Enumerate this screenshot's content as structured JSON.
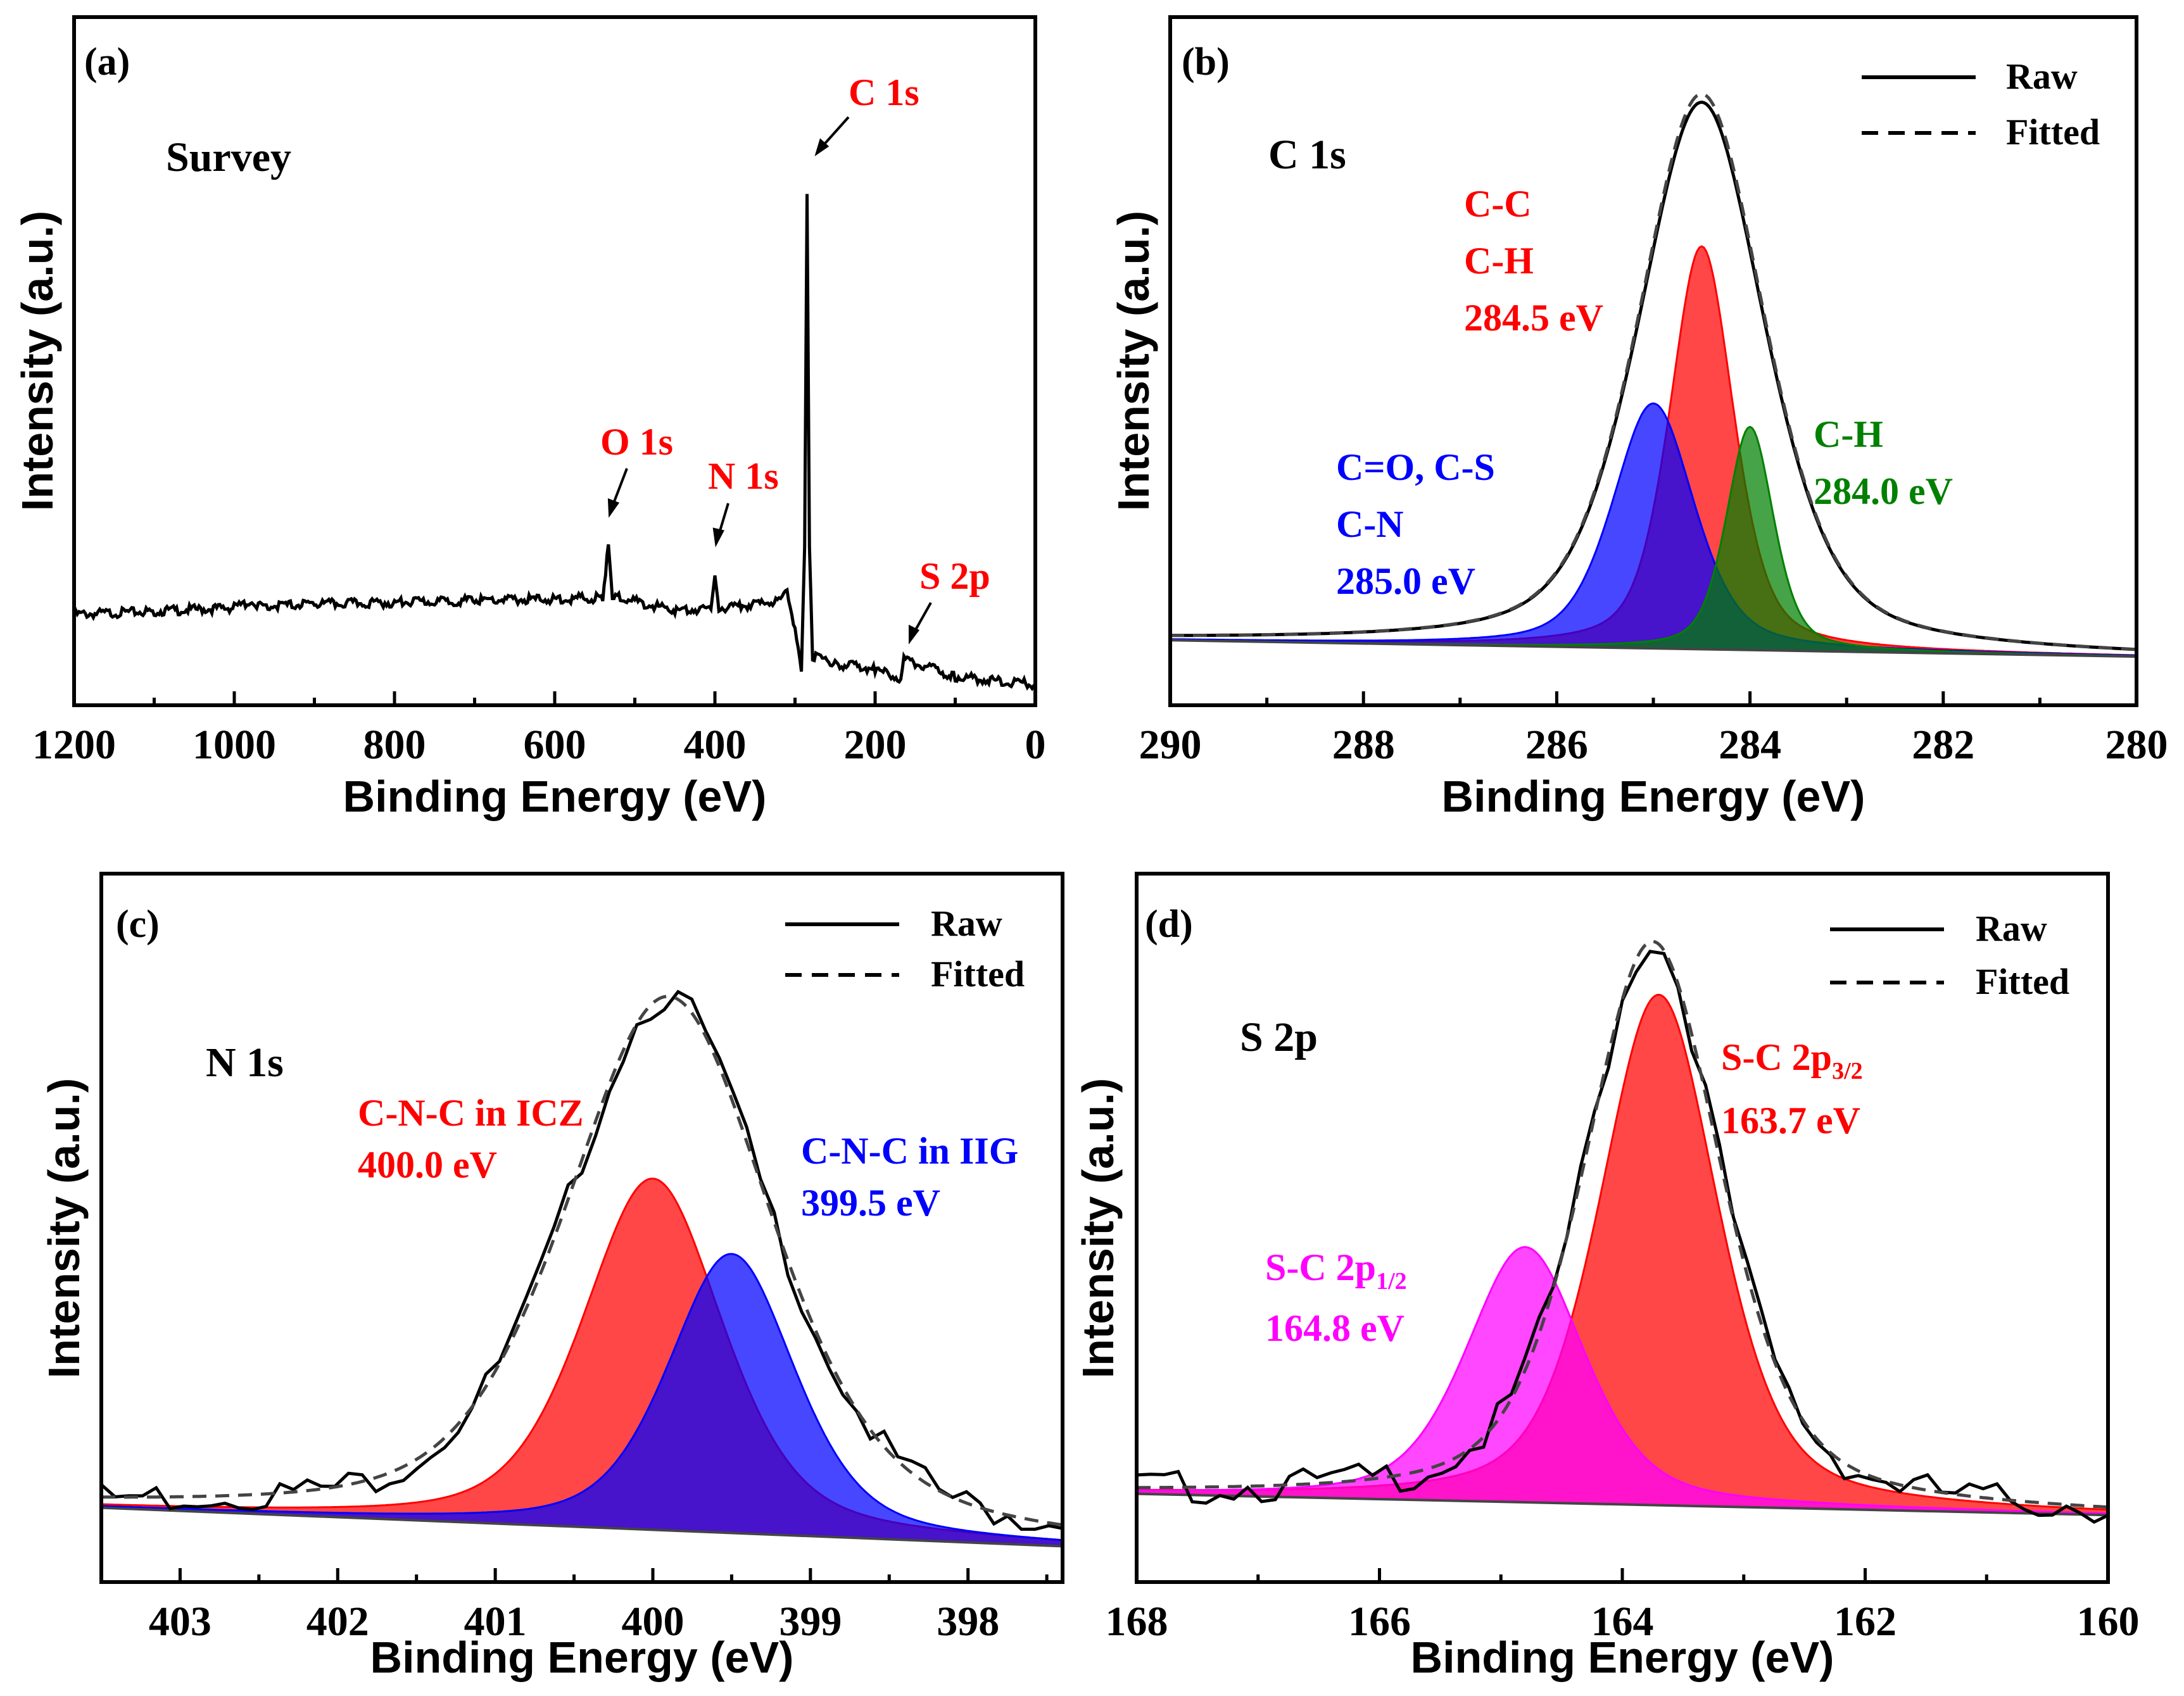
{
  "chart_data": [
    {
      "panel": "(a)",
      "type": "line",
      "title": "Survey",
      "xlabel": "Binding Energy (eV)",
      "ylabel": "Intensity (a.u.)",
      "xlim": [
        1200,
        0
      ],
      "ylim": [
        0,
        100
      ],
      "xticks": [
        1200,
        1000,
        800,
        600,
        400,
        200,
        0
      ],
      "tick_labels": [
        "1200",
        "1000",
        "800",
        "600",
        "400",
        "200",
        "0"
      ],
      "series": [
        {
          "name": "Survey",
          "color": "#000000",
          "x": [
            1200,
            1100,
            1000,
            980,
            970,
            900,
            800,
            700,
            600,
            540,
            533,
            528,
            520,
            450,
            405,
            400,
            395,
            320,
            310,
            300,
            292,
            288,
            285,
            282,
            278,
            250,
            200,
            168,
            164,
            100,
            0
          ],
          "y": [
            17,
            17.6,
            18.3,
            19.5,
            18.6,
            19.0,
            19.3,
            19.7,
            20.0,
            20.2,
            30.5,
            20.4,
            20.2,
            17.8,
            18.0,
            24.5,
            18.2,
            19.5,
            22,
            14,
            6,
            30,
            98,
            30,
            9,
            7.5,
            6.5,
            4.5,
            8.5,
            5.0,
            3.5
          ]
        }
      ],
      "annotations": [
        {
          "text": "C 1s",
          "x": 285,
          "color": "#ff0000"
        },
        {
          "text": "O 1s",
          "x": 532,
          "color": "#ff0000"
        },
        {
          "text": "N 1s",
          "x": 400,
          "color": "#ff0000"
        },
        {
          "text": "S 2p",
          "x": 164,
          "color": "#ff0000"
        }
      ]
    },
    {
      "panel": "(b)",
      "type": "line",
      "title": "C 1s",
      "xlabel": "Binding Energy (eV)",
      "ylabel": "Intensity (a.u.)",
      "xlim": [
        290,
        280
      ],
      "ylim": [
        0,
        100
      ],
      "xticks": [
        290,
        288,
        286,
        284,
        282,
        280
      ],
      "tick_labels": [
        "290",
        "288",
        "286",
        "284",
        "282",
        "280"
      ],
      "baseline": {
        "x": [
          290,
          280
        ],
        "y": [
          4.5,
          1.5
        ]
      },
      "components": [
        {
          "name": "C-C C-H",
          "center": 284.5,
          "height": 74,
          "fwhm": 0.78,
          "color": "#ff0000"
        },
        {
          "name": "C=O, C-S C-N",
          "center": 285.0,
          "height": 45,
          "fwhm": 1.0,
          "color": "#0000ff"
        },
        {
          "name": "C-H",
          "center": 284.0,
          "height": 41,
          "fwhm": 0.58,
          "color": "#008000"
        }
      ],
      "envelope": {
        "center": 284.5,
        "height": 102,
        "fwhm": 1.55
      },
      "legend": [
        "Raw",
        "Fitted"
      ],
      "annotations": [
        {
          "lines": [
            "C-C",
            "C-H",
            "284.5 eV"
          ],
          "color": "#ff0000"
        },
        {
          "lines": [
            "C=O, C-S",
            "C-N",
            "285.0 eV"
          ],
          "color": "#0000ff"
        },
        {
          "lines": [
            "C-H",
            "284.0 eV"
          ],
          "color": "#008000"
        }
      ]
    },
    {
      "panel": "(c)",
      "type": "line",
      "title": "N 1s",
      "xlabel": "Binding Energy (eV)",
      "ylabel": "Intensity (a.u.)",
      "xlim": [
        403.5,
        397.4
      ],
      "ylim": [
        0,
        100
      ],
      "xticks": [
        403,
        402,
        401,
        400,
        399,
        398
      ],
      "tick_labels": [
        "403",
        "402",
        "401",
        "400",
        "399",
        "398"
      ],
      "baseline": {
        "x": [
          403.5,
          397.4
        ],
        "y": [
          9,
          1
        ]
      },
      "components": [
        {
          "name": "C-N-C in ICZ",
          "center": 400.0,
          "height": 73,
          "fwhm": 1.05,
          "color": "#ff0000"
        },
        {
          "name": "C-N-C in IIG",
          "center": 399.5,
          "height": 58,
          "fwhm": 0.95,
          "color": "#0000ff"
        }
      ],
      "envelope": {
        "center": 399.9,
        "height": 111,
        "fwhm": 1.55
      },
      "legend": [
        "Raw",
        "Fitted"
      ],
      "annotations": [
        {
          "lines": [
            "C-N-C in ICZ",
            "400.0 eV"
          ],
          "color": "#ff0000"
        },
        {
          "lines": [
            "C-N-C in IIG",
            "399.5 eV"
          ],
          "color": "#0000ff"
        }
      ]
    },
    {
      "panel": "(d)",
      "type": "line",
      "title": "S 2p",
      "xlabel": "Binding Energy (eV)",
      "ylabel": "Intensity (a.u.)",
      "xlim": [
        168,
        160
      ],
      "ylim": [
        0,
        100
      ],
      "xticks": [
        168,
        166,
        164,
        162,
        160
      ],
      "tick_labels": [
        "168",
        "166",
        "164",
        "162",
        "160"
      ],
      "baseline": {
        "x": [
          168,
          160
        ],
        "y": [
          6,
          2
        ]
      },
      "components": [
        {
          "name": "S-C 2p3/2",
          "center": 163.7,
          "height": 96,
          "fwhm": 1.15,
          "color": "#ff0000"
        },
        {
          "name": "S-C 2p1/2",
          "center": 164.8,
          "height": 48,
          "fwhm": 1.15,
          "color": "#ff00ff"
        }
      ],
      "envelope": {
        "center": 163.75,
        "height": 106,
        "fwhm": 1.35
      },
      "legend": [
        "Raw",
        "Fitted"
      ],
      "annotations": [
        {
          "main": "S-C 2p",
          "sub": "3/2",
          "energy": "163.7 eV",
          "color": "#ff0000"
        },
        {
          "main": "S-C 2p",
          "sub": "1/2",
          "energy": "164.8 eV",
          "color": "#ff00ff"
        }
      ]
    }
  ]
}
